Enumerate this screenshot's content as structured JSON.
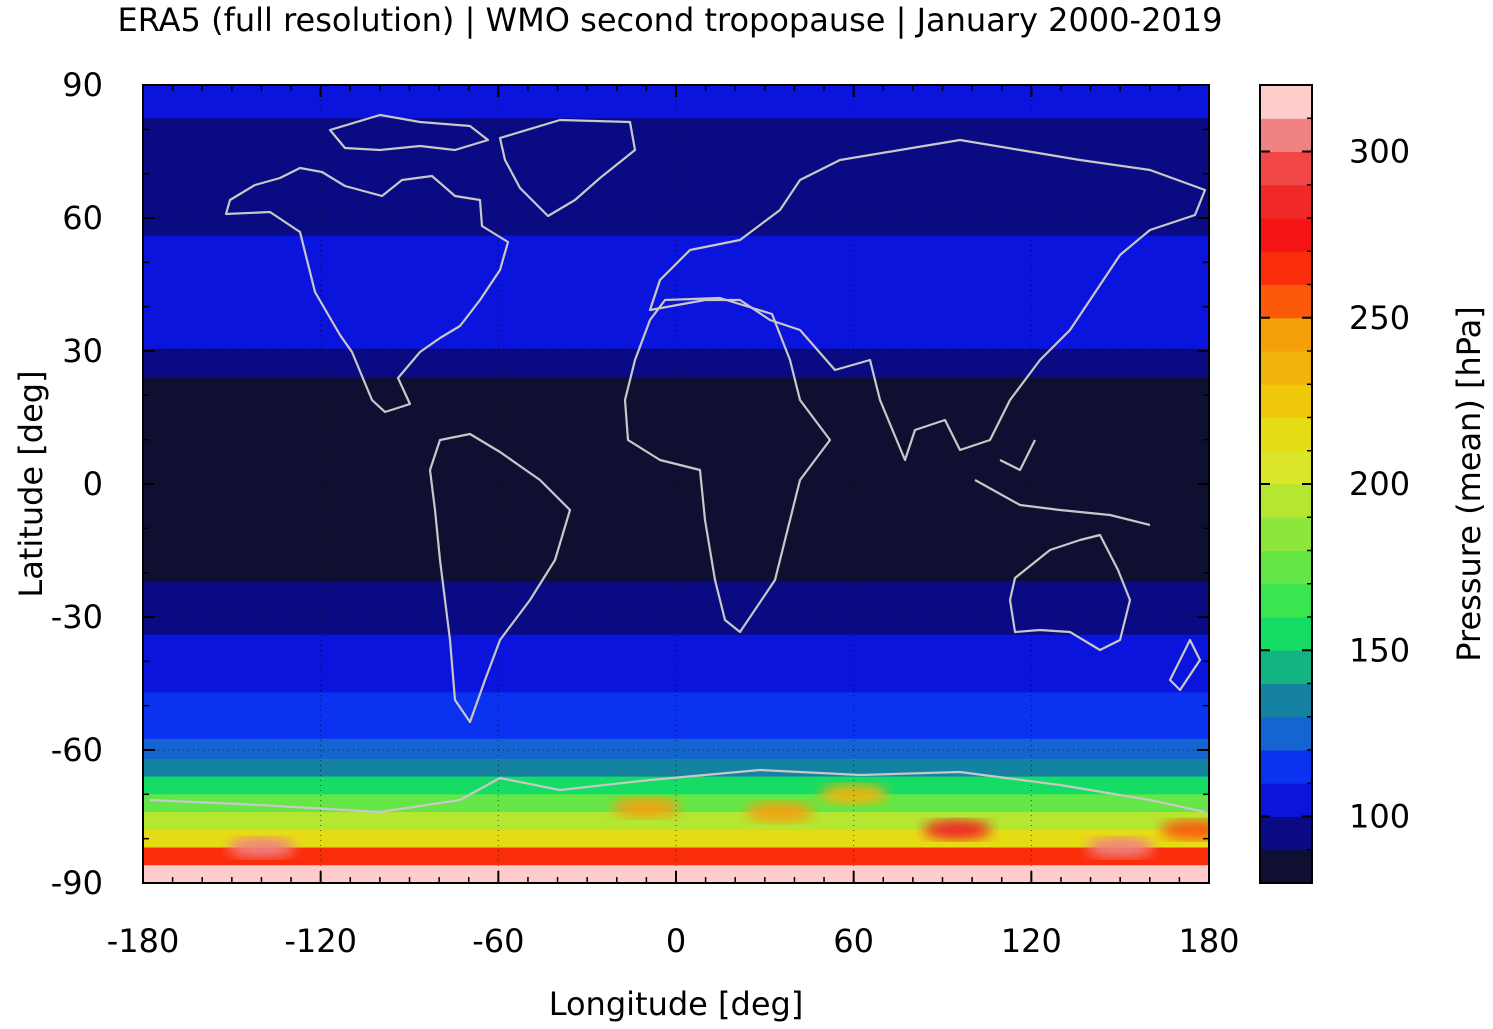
{
  "title": "ERA5 (full resolution) | WMO second tropopause | January 2000-2019",
  "chart_data": {
    "type": "heatmap",
    "title": "ERA5 (full resolution) | WMO second tropopause | January 2000-2019",
    "xlabel": "Longitude [deg]",
    "ylabel": "Latitude [deg]",
    "colorbar_label": "Pressure (mean) [hPa]",
    "xlim": [
      -180,
      180
    ],
    "ylim": [
      -90,
      90
    ],
    "xticks": [
      "-180",
      "-120",
      "-60",
      "0",
      "60",
      "120",
      "180"
    ],
    "yticks": [
      "90",
      "60",
      "30",
      "0",
      "-30",
      "-60",
      "-90"
    ],
    "colorbar_range": [
      80,
      320
    ],
    "colorbar_ticks": [
      "100",
      "150",
      "200",
      "250",
      "300"
    ],
    "colorbar_levels": [
      {
        "from": 80,
        "to": 90,
        "color": "#0f0f32"
      },
      {
        "from": 90,
        "to": 100,
        "color": "#0a0a82"
      },
      {
        "from": 100,
        "to": 110,
        "color": "#0a14dc"
      },
      {
        "from": 110,
        "to": 120,
        "color": "#0a32f0"
      },
      {
        "from": 120,
        "to": 130,
        "color": "#1464d2"
      },
      {
        "from": 130,
        "to": 140,
        "color": "#1482a0"
      },
      {
        "from": 140,
        "to": 150,
        "color": "#14b482"
      },
      {
        "from": 150,
        "to": 160,
        "color": "#14dc64"
      },
      {
        "from": 160,
        "to": 170,
        "color": "#3ce650"
      },
      {
        "from": 170,
        "to": 180,
        "color": "#64e646"
      },
      {
        "from": 180,
        "to": 190,
        "color": "#8ce63c"
      },
      {
        "from": 190,
        "to": 200,
        "color": "#b4e632"
      },
      {
        "from": 200,
        "to": 210,
        "color": "#dce628"
      },
      {
        "from": 210,
        "to": 220,
        "color": "#e6dc14"
      },
      {
        "from": 220,
        "to": 230,
        "color": "#f0c80a"
      },
      {
        "from": 230,
        "to": 240,
        "color": "#f0b40a"
      },
      {
        "from": 240,
        "to": 250,
        "color": "#f5a00a"
      },
      {
        "from": 250,
        "to": 260,
        "color": "#fa5a0a"
      },
      {
        "from": 260,
        "to": 270,
        "color": "#fa2d0a"
      },
      {
        "from": 270,
        "to": 280,
        "color": "#f51414"
      },
      {
        "from": 280,
        "to": 290,
        "color": "#f02828"
      },
      {
        "from": 290,
        "to": 300,
        "color": "#f04646"
      },
      {
        "from": 300,
        "to": 310,
        "color": "#f08282"
      },
      {
        "from": 310,
        "to": 320,
        "color": "#ffcccc"
      }
    ],
    "lat_profile_hpa": [
      {
        "lat": 90,
        "value": 105
      },
      {
        "lat": 75,
        "value": 98
      },
      {
        "lat": 62,
        "value": 95
      },
      {
        "lat": 50,
        "value": 104
      },
      {
        "lat": 40,
        "value": 108
      },
      {
        "lat": 33,
        "value": 103
      },
      {
        "lat": 28,
        "value": 95
      },
      {
        "lat": 20,
        "value": 86
      },
      {
        "lat": 0,
        "value": 85
      },
      {
        "lat": -20,
        "value": 86
      },
      {
        "lat": -24,
        "value": 92
      },
      {
        "lat": -30,
        "value": 98
      },
      {
        "lat": -38,
        "value": 104
      },
      {
        "lat": -44,
        "value": 108
      },
      {
        "lat": -50,
        "value": 112
      },
      {
        "lat": -55,
        "value": 118
      },
      {
        "lat": -60,
        "value": 128
      },
      {
        "lat": -64,
        "value": 138
      },
      {
        "lat": -68,
        "value": 158
      },
      {
        "lat": -72,
        "value": 178
      },
      {
        "lat": -76,
        "value": 195
      },
      {
        "lat": -80,
        "value": 215
      },
      {
        "lat": -84,
        "value": 260
      },
      {
        "lat": -88,
        "value": 310
      }
    ],
    "hotspots": [
      {
        "lon": 95,
        "lat": -78,
        "value": 285
      },
      {
        "lon": 35,
        "lat": -74,
        "value": 240
      },
      {
        "lon": 150,
        "lat": -82,
        "value": 300
      },
      {
        "lon": -140,
        "lat": -82,
        "value": 300
      },
      {
        "lon": -10,
        "lat": -73,
        "value": 245
      },
      {
        "lon": 175,
        "lat": -78,
        "value": 250
      },
      {
        "lon": 60,
        "lat": -70,
        "value": 230
      }
    ]
  }
}
